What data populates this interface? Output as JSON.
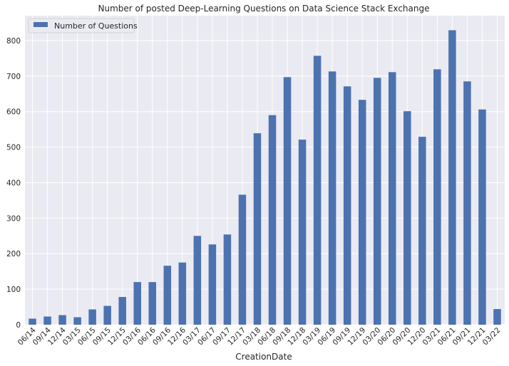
{
  "chart_data": {
    "type": "bar",
    "title": "Number of posted Deep-Learning Questions on Data Science Stack Exchange",
    "xlabel": "CreationDate",
    "ylabel": "",
    "ylim": [
      0,
      870
    ],
    "yticks": [
      0,
      100,
      200,
      300,
      400,
      500,
      600,
      700,
      800
    ],
    "grid": true,
    "legend_position": "top-left",
    "categories": [
      "06/14",
      "09/14",
      "12/14",
      "03/15",
      "06/15",
      "09/15",
      "12/15",
      "03/16",
      "06/16",
      "09/16",
      "12/16",
      "03/17",
      "06/17",
      "09/17",
      "12/17",
      "03/18",
      "06/18",
      "09/18",
      "12/18",
      "03/19",
      "06/19",
      "09/19",
      "12/19",
      "03/20",
      "06/20",
      "09/20",
      "12/20",
      "03/21",
      "06/21",
      "09/21",
      "12/21",
      "03/22"
    ],
    "series": [
      {
        "name": "Number of Questions",
        "color": "#4c72b0",
        "values": [
          17,
          23,
          27,
          21,
          43,
          53,
          78,
          120,
          120,
          166,
          175,
          250,
          226,
          254,
          366,
          539,
          590,
          697,
          521,
          757,
          713,
          671,
          633,
          695,
          711,
          601,
          529,
          719,
          829,
          685,
          606,
          44
        ]
      }
    ]
  }
}
